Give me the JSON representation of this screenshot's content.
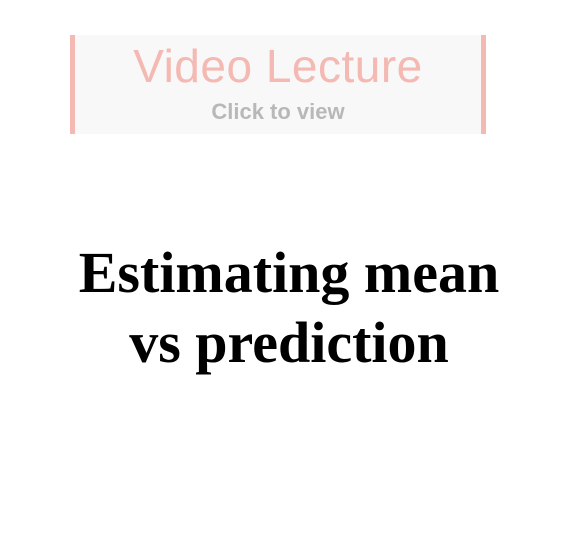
{
  "video_lecture": {
    "title": "Video Lecture",
    "subtitle": "Click to view",
    "colors": {
      "accent": "#f4b9b2",
      "subtitle": "#b8b8b8",
      "background": "#f8f8f8"
    }
  },
  "slide": {
    "title_line1": "Estimating mean",
    "title_line2": "vs prediction"
  }
}
